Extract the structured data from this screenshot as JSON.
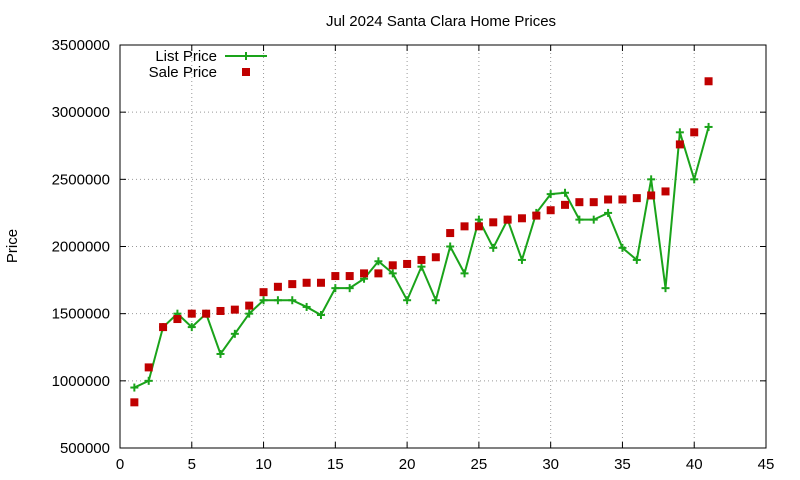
{
  "chart_data": {
    "type": "scatter",
    "title": "Jul 2024 Santa Clara Home Prices",
    "xlabel": "",
    "ylabel": "Price",
    "xlim": [
      0,
      45
    ],
    "ylim": [
      500000,
      3500000
    ],
    "xticks": [
      0,
      5,
      10,
      15,
      20,
      25,
      30,
      35,
      40,
      45
    ],
    "yticks": [
      500000,
      1000000,
      1500000,
      2000000,
      2500000,
      3000000,
      3500000
    ],
    "grid": true,
    "legend_position": "top-left",
    "series": [
      {
        "name": "List Price",
        "style": "linespoints",
        "color": "#1aa31a",
        "points": [
          [
            1,
            950000
          ],
          [
            2,
            1000000
          ],
          [
            3,
            1400000
          ],
          [
            4,
            1500000
          ],
          [
            5,
            1400000
          ],
          [
            6,
            1500000
          ],
          [
            7,
            1200000
          ],
          [
            8,
            1350000
          ],
          [
            9,
            1500000
          ],
          [
            10,
            1600000
          ],
          [
            11,
            1600000
          ],
          [
            12,
            1600000
          ],
          [
            13,
            1550000
          ],
          [
            14,
            1490000
          ],
          [
            15,
            1690000
          ],
          [
            16,
            1690000
          ],
          [
            17,
            1760000
          ],
          [
            18,
            1890000
          ],
          [
            19,
            1800000
          ],
          [
            20,
            1600000
          ],
          [
            21,
            1850000
          ],
          [
            22,
            1600000
          ],
          [
            23,
            2000000
          ],
          [
            24,
            1800000
          ],
          [
            25,
            2200000
          ],
          [
            26,
            1990000
          ],
          [
            27,
            2200000
          ],
          [
            28,
            1900000
          ],
          [
            29,
            2250000
          ],
          [
            30,
            2390000
          ],
          [
            31,
            2400000
          ],
          [
            32,
            2200000
          ],
          [
            33,
            2200000
          ],
          [
            34,
            2250000
          ],
          [
            35,
            1990000
          ],
          [
            36,
            1900000
          ],
          [
            37,
            2500000
          ],
          [
            38,
            1690000
          ],
          [
            39,
            2850000
          ],
          [
            40,
            2500000
          ],
          [
            41,
            2890000
          ]
        ]
      },
      {
        "name": "Sale Price",
        "style": "points",
        "color": "#c00000",
        "points": [
          [
            1,
            840000
          ],
          [
            2,
            1100000
          ],
          [
            3,
            1400000
          ],
          [
            4,
            1460000
          ],
          [
            5,
            1500000
          ],
          [
            6,
            1500000
          ],
          [
            7,
            1520000
          ],
          [
            8,
            1530000
          ],
          [
            9,
            1560000
          ],
          [
            10,
            1660000
          ],
          [
            11,
            1700000
          ],
          [
            12,
            1720000
          ],
          [
            13,
            1730000
          ],
          [
            14,
            1730000
          ],
          [
            15,
            1780000
          ],
          [
            16,
            1780000
          ],
          [
            17,
            1800000
          ],
          [
            18,
            1800000
          ],
          [
            19,
            1860000
          ],
          [
            20,
            1870000
          ],
          [
            21,
            1900000
          ],
          [
            22,
            1920000
          ],
          [
            23,
            2100000
          ],
          [
            24,
            2150000
          ],
          [
            25,
            2150000
          ],
          [
            26,
            2180000
          ],
          [
            27,
            2200000
          ],
          [
            28,
            2210000
          ],
          [
            29,
            2230000
          ],
          [
            30,
            2270000
          ],
          [
            31,
            2310000
          ],
          [
            32,
            2330000
          ],
          [
            33,
            2330000
          ],
          [
            34,
            2350000
          ],
          [
            35,
            2350000
          ],
          [
            36,
            2360000
          ],
          [
            37,
            2380000
          ],
          [
            38,
            2410000
          ],
          [
            39,
            2760000
          ],
          [
            40,
            2850000
          ],
          [
            41,
            3230000
          ]
        ]
      }
    ]
  }
}
